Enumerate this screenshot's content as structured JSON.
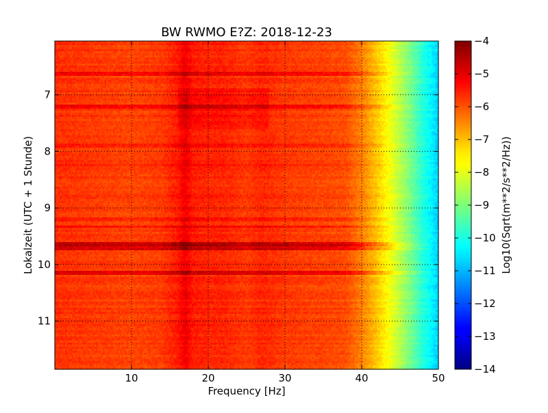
{
  "chart_data": {
    "type": "heatmap",
    "title": "BW RWMO E?Z: 2018-12-23",
    "xlabel": "Frequency [Hz]",
    "ylabel": "Lokalzeit (UTC + 1 Stunde)",
    "xlim": [
      0,
      50
    ],
    "ylim": [
      11.85,
      6.05
    ],
    "x_ticks": [
      10,
      20,
      30,
      40,
      50
    ],
    "y_ticks": [
      7,
      8,
      9,
      10,
      11
    ],
    "grid": true,
    "colorbar": {
      "label": "Log10(Sqrt(m**2/s**2/Hz))",
      "range": [
        -14,
        -4
      ],
      "ticks": [
        -4,
        -5,
        -6,
        -7,
        -8,
        -9,
        -10,
        -11,
        -12,
        -13,
        -14
      ],
      "colormap": "jet"
    },
    "frequency_profile_hz": [
      0,
      5,
      10,
      14,
      16,
      17,
      18,
      20,
      22,
      25,
      27,
      30,
      35,
      38,
      40,
      42,
      44,
      46,
      48,
      50
    ],
    "frequency_profile_value": [
      -5.7,
      -5.8,
      -5.9,
      -5.8,
      -5.5,
      -5.1,
      -5.5,
      -5.6,
      -5.6,
      -5.8,
      -5.6,
      -5.8,
      -5.9,
      -6.0,
      -6.5,
      -7.2,
      -8.0,
      -8.9,
      -9.9,
      -10.7
    ],
    "events": [
      {
        "time": 9.65,
        "value": -4.4
      },
      {
        "time": 9.72,
        "value": -4.7
      },
      {
        "time": 10.14,
        "value": -4.9
      },
      {
        "time": 9.33,
        "value": -5.2
      },
      {
        "time": 9.22,
        "value": -5.4
      },
      {
        "time": 7.2,
        "value": -5.1
      },
      {
        "time": 6.62,
        "value": -5.0
      },
      {
        "time": 7.9,
        "value": -5.4
      },
      {
        "time": 8.22,
        "value": -5.6
      }
    ]
  }
}
